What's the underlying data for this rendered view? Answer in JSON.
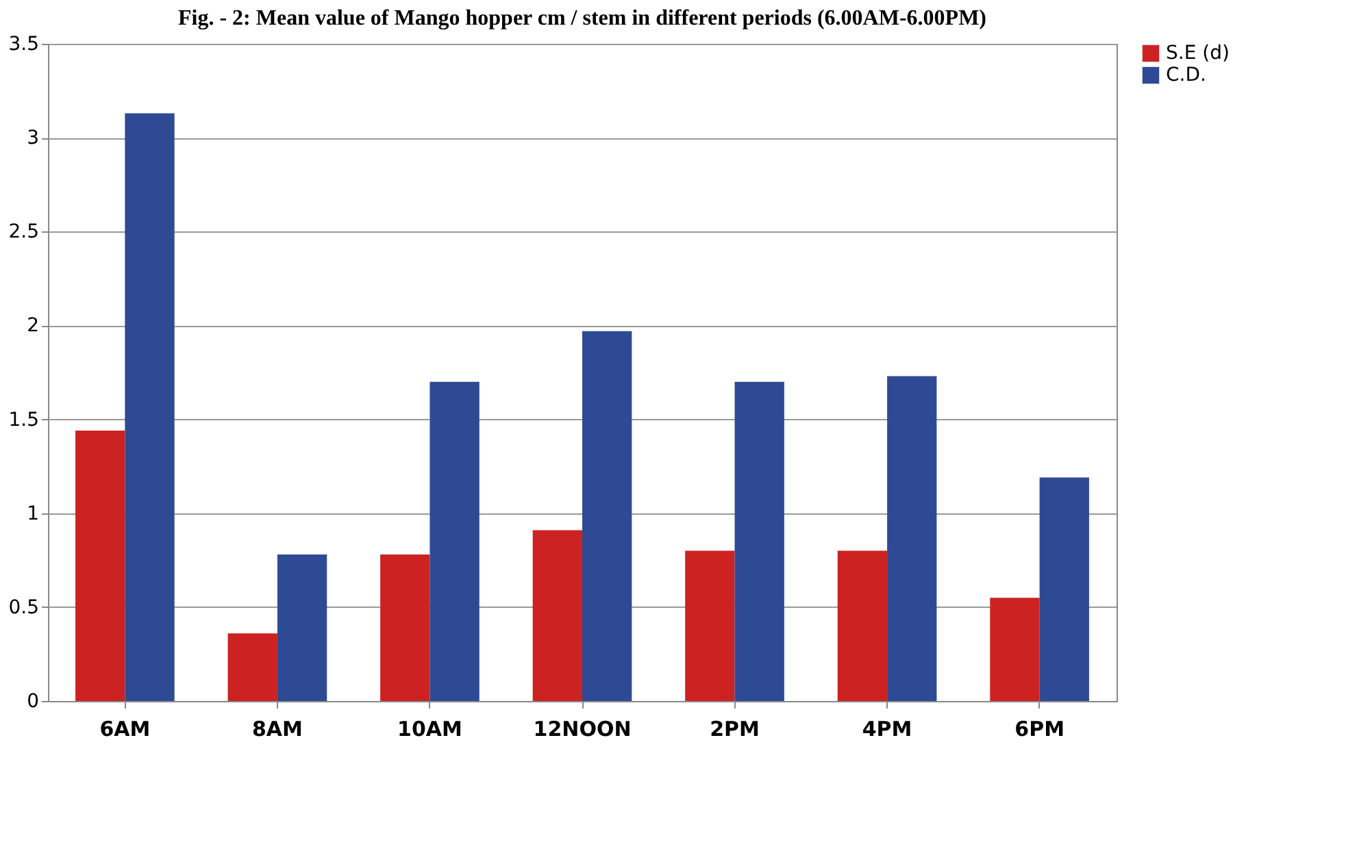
{
  "chart_data": {
    "type": "bar",
    "title": "Fig. - 2: Mean value of Mango hopper cm / stem in different periods (6.00AM-6.00PM)",
    "categories": [
      "6AM",
      "8AM",
      "10AM",
      "12NOON",
      "2PM",
      "4PM",
      "6PM"
    ],
    "series": [
      {
        "name": "S.E (d)",
        "color": "#cc2222",
        "values": [
          1.44,
          0.36,
          0.78,
          0.91,
          0.8,
          0.8,
          0.55
        ]
      },
      {
        "name": "C.D.",
        "color": "#2f4a94",
        "values": [
          3.13,
          0.78,
          1.7,
          1.97,
          1.7,
          1.73,
          1.19
        ]
      }
    ],
    "ylim": [
      0,
      3.5
    ],
    "yticks": [
      0,
      0.5,
      1,
      1.5,
      2,
      2.5,
      3,
      3.5
    ],
    "grid": "y",
    "legend": "right"
  }
}
